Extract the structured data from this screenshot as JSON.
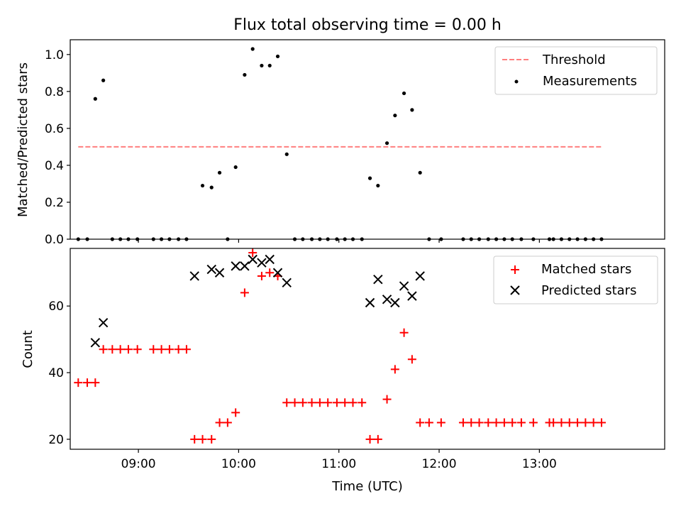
{
  "title": "Flux total observing time = 0.00 h",
  "chart_data": [
    {
      "type": "scatter",
      "ylabel": "Matched/Predicted stars",
      "xlim": [
        8.32,
        14.25
      ],
      "ylim": [
        0,
        1.08
      ],
      "yticks": [
        0.0,
        0.2,
        0.4,
        0.6,
        0.8,
        1.0
      ],
      "ytick_labels": [
        "0.0",
        "0.2",
        "0.4",
        "0.6",
        "0.8",
        "1.0"
      ],
      "legend_position": "top-right",
      "threshold": {
        "name": "Threshold",
        "y": 0.5,
        "x": [
          8.4,
          13.62
        ],
        "color": "#ff7f7f",
        "style": "dashed"
      },
      "series": [
        {
          "name": "Measurements",
          "color": "#000000",
          "marker": "dot",
          "x": [
            8.4,
            8.49,
            8.57,
            8.65,
            8.74,
            8.82,
            8.9,
            8.99,
            9.15,
            9.23,
            9.31,
            9.4,
            9.48,
            9.64,
            9.73,
            9.81,
            9.89,
            9.97,
            10.06,
            10.14,
            10.23,
            10.31,
            10.39,
            10.48,
            10.56,
            10.64,
            10.73,
            10.81,
            10.89,
            10.98,
            11.06,
            11.14,
            11.23,
            11.31,
            11.39,
            11.48,
            11.56,
            11.65,
            11.73,
            11.81,
            11.9,
            12.02,
            12.24,
            12.32,
            12.4,
            12.49,
            12.57,
            12.65,
            12.73,
            12.82,
            12.94,
            13.1,
            13.14,
            13.22,
            13.3,
            13.38,
            13.46,
            13.54,
            13.62
          ],
          "y": [
            0,
            0,
            0.76,
            0.86,
            0,
            0,
            0,
            0,
            0,
            0,
            0,
            0,
            0,
            0.29,
            0.28,
            0.36,
            0,
            0.39,
            0.89,
            1.03,
            0.94,
            0.94,
            0.99,
            0.46,
            0,
            0,
            0,
            0,
            0,
            0,
            0,
            0,
            0,
            0.33,
            0.29,
            0.52,
            0.67,
            0.79,
            0.7,
            0.36,
            0,
            0,
            0,
            0,
            0,
            0,
            0,
            0,
            0,
            0,
            0,
            0,
            0,
            0,
            0,
            0,
            0,
            0,
            0
          ]
        }
      ]
    },
    {
      "type": "scatter",
      "xlabel": "Time (UTC)",
      "ylabel": "Count",
      "xlim": [
        8.32,
        14.25
      ],
      "ylim": [
        17,
        77.3
      ],
      "yticks": [
        20,
        40,
        60
      ],
      "ytick_labels": [
        "20",
        "40",
        "60"
      ],
      "xticks": [
        9,
        10,
        11,
        12,
        13
      ],
      "xtick_labels": [
        "09:00",
        "10:00",
        "11:00",
        "12:00",
        "13:00"
      ],
      "legend_position": "top-right",
      "series": [
        {
          "name": "Matched stars",
          "color": "#ff0000",
          "marker": "plus",
          "x": [
            8.4,
            8.49,
            8.57,
            8.65,
            8.74,
            8.82,
            8.9,
            8.99,
            9.15,
            9.23,
            9.31,
            9.4,
            9.48,
            9.56,
            9.64,
            9.73,
            9.81,
            9.89,
            9.97,
            10.06,
            10.14,
            10.23,
            10.31,
            10.39,
            10.48,
            10.56,
            10.64,
            10.73,
            10.81,
            10.89,
            10.98,
            11.06,
            11.14,
            11.23,
            11.31,
            11.39,
            11.48,
            11.56,
            11.65,
            11.73,
            11.81,
            11.9,
            12.02,
            12.24,
            12.32,
            12.4,
            12.49,
            12.57,
            12.65,
            12.73,
            12.82,
            12.94,
            13.1,
            13.14,
            13.22,
            13.3,
            13.38,
            13.46,
            13.54,
            13.62
          ],
          "y": [
            37,
            37,
            37,
            47,
            47,
            47,
            47,
            47,
            47,
            47,
            47,
            47,
            47,
            20,
            20,
            20,
            25,
            25,
            28,
            64,
            76,
            69,
            70,
            69,
            31,
            31,
            31,
            31,
            31,
            31,
            31,
            31,
            31,
            31,
            20,
            20,
            32,
            41,
            52,
            44,
            25,
            25,
            25,
            25,
            25,
            25,
            25,
            25,
            25,
            25,
            25,
            25,
            25,
            25,
            25,
            25,
            25,
            25,
            25,
            25
          ]
        },
        {
          "name": "Predicted stars",
          "color": "#000000",
          "marker": "x",
          "x": [
            8.57,
            8.65,
            9.56,
            9.73,
            9.81,
            9.97,
            10.06,
            10.14,
            10.23,
            10.31,
            10.39,
            10.48,
            11.31,
            11.39,
            11.48,
            11.56,
            11.65,
            11.73,
            11.81
          ],
          "y": [
            49,
            55,
            69,
            71,
            70,
            72,
            72,
            74,
            73,
            74,
            70,
            67,
            61,
            68,
            62,
            61,
            66,
            63,
            69
          ]
        }
      ]
    }
  ]
}
